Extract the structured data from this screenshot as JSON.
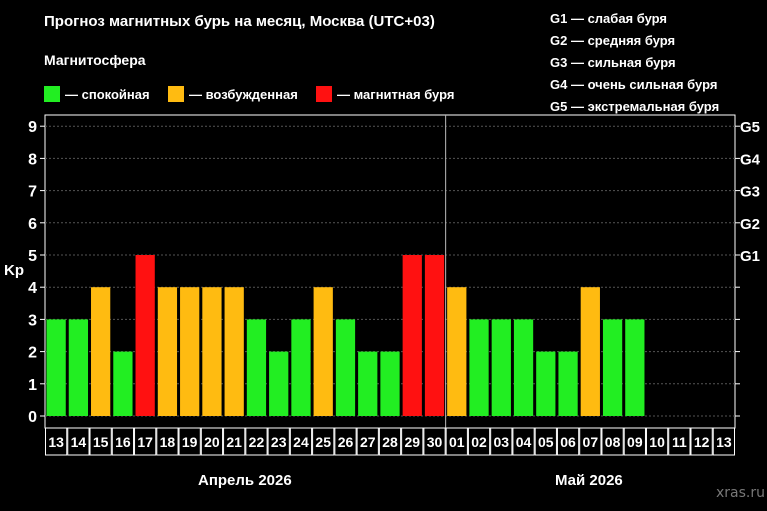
{
  "title": "Прогноз магнитных бурь на месяц, Москва (UTC+03)",
  "legend": {
    "title": "Магнитосфера",
    "items": [
      {
        "label": "— спокойная",
        "color": "#22ee22"
      },
      {
        "label": "— возбужденная",
        "color": "#ffbb11"
      },
      {
        "label": "— магнитная буря",
        "color": "#ff1111"
      }
    ]
  },
  "storm_scale": [
    "G1 — слабая буря",
    "G2 — средняя буря",
    "G3 — сильная буря",
    "G4 — очень сильная буря",
    "G5 — экстремальная буря"
  ],
  "months": [
    {
      "label": "Апрель 2026"
    },
    {
      "label": "Май 2026"
    }
  ],
  "watermark": "xras.ru",
  "chart_data": {
    "type": "bar",
    "ylabel": "Kp",
    "ylim": [
      0,
      9
    ],
    "y_ticks": [
      "0",
      "1",
      "2",
      "3",
      "4",
      "5",
      "6",
      "7",
      "8",
      "9"
    ],
    "y2_ticks": [
      {
        "value": 5,
        "label": "G1"
      },
      {
        "value": 6,
        "label": "G2"
      },
      {
        "value": 7,
        "label": "G3"
      },
      {
        "value": 8,
        "label": "G4"
      },
      {
        "value": 9,
        "label": "G5"
      }
    ],
    "categories": [
      "13",
      "14",
      "15",
      "16",
      "17",
      "18",
      "19",
      "20",
      "21",
      "22",
      "23",
      "24",
      "25",
      "26",
      "27",
      "28",
      "29",
      "30",
      "01",
      "02",
      "03",
      "04",
      "05",
      "06",
      "07",
      "08",
      "09",
      "10",
      "11",
      "12",
      "13"
    ],
    "values": [
      3,
      3,
      4,
      2,
      5,
      4,
      4,
      4,
      4,
      3,
      2,
      3,
      4,
      3,
      2,
      2,
      5,
      5,
      4,
      3,
      3,
      3,
      2,
      2,
      4,
      3,
      3,
      null,
      null,
      null,
      null
    ],
    "levels": [
      "calm",
      "calm",
      "excited",
      "calm",
      "storm",
      "excited",
      "excited",
      "excited",
      "excited",
      "calm",
      "calm",
      "calm",
      "excited",
      "calm",
      "calm",
      "calm",
      "storm",
      "storm",
      "excited",
      "calm",
      "calm",
      "calm",
      "calm",
      "calm",
      "excited",
      "calm",
      "calm",
      null,
      null,
      null,
      null
    ],
    "level_colors": {
      "calm": "#22ee22",
      "excited": "#ffbb11",
      "storm": "#ff1111"
    },
    "month_divider_after_index": 17,
    "grid": true
  }
}
